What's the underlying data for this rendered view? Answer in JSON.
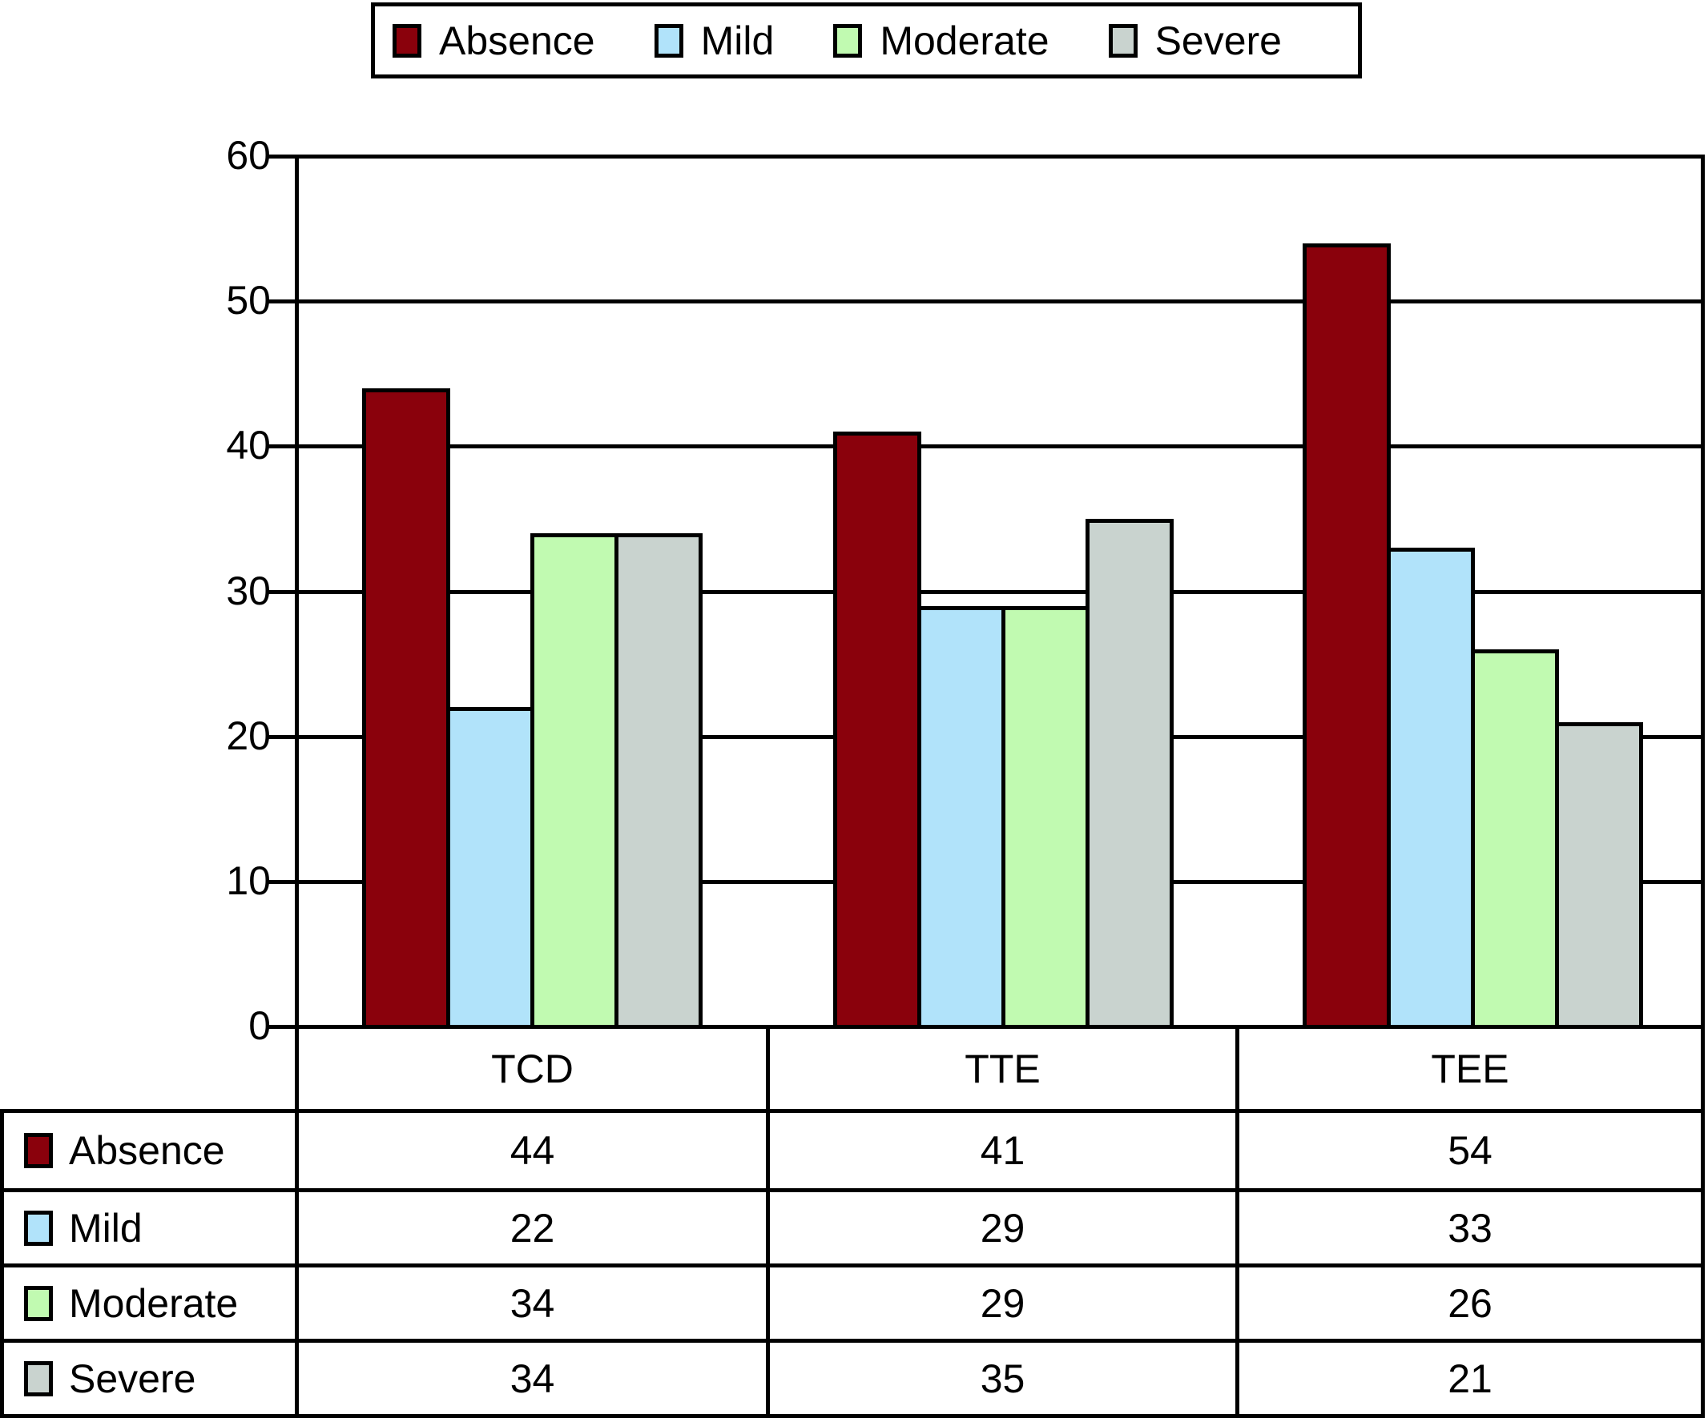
{
  "chart_data": {
    "type": "bar",
    "title": "",
    "categories": [
      "TCD",
      "TTE",
      "TEE"
    ],
    "series": [
      {
        "name": "Absence",
        "color": "#8A010C",
        "values": [
          44,
          41,
          54
        ]
      },
      {
        "name": "Mild",
        "color": "#B1E3FA",
        "values": [
          22,
          29,
          33
        ]
      },
      {
        "name": "Moderate",
        "color": "#C1FAB1",
        "values": [
          34,
          29,
          26
        ]
      },
      {
        "name": "Severe",
        "color": "#C9D3CF",
        "values": [
          34,
          35,
          21
        ]
      }
    ],
    "xlabel": "",
    "ylabel": "",
    "ylim": [
      0,
      60
    ],
    "yticks": [
      0,
      10,
      20,
      30,
      40,
      50,
      60
    ],
    "grid": true,
    "legend_position": "top",
    "legend_labels": [
      "Absence",
      "Mild",
      "Moderate",
      "Severe"
    ],
    "data_table_shown": true,
    "colors": {
      "axis": "#000000",
      "gridline": "#000000",
      "bar_border": "#000000",
      "background": "#FFFFFF"
    }
  }
}
